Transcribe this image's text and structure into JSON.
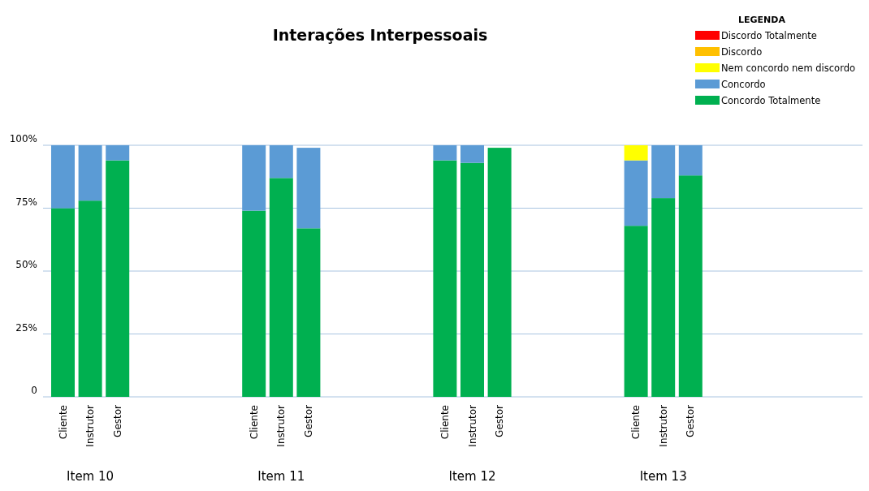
{
  "chart_data": {
    "type": "bar",
    "title": "Interações Interpessoais",
    "stacked": true,
    "categories": [
      "Cliente",
      "Instrutor",
      "Gestor",
      null,
      null,
      null,
      null,
      "Cliente",
      "Instrutor",
      "Gestor",
      null,
      null,
      null,
      null,
      "Cliente",
      "Instrutor",
      "Gestor",
      null,
      null,
      null,
      null,
      "Cliente",
      "Instrutor",
      "Gestor"
    ],
    "series": [
      {
        "name": "Concordo Totalmente",
        "color": "#00b050",
        "values": [
          75,
          78,
          94,
          null,
          null,
          null,
          null,
          74,
          87,
          67,
          null,
          null,
          null,
          null,
          94,
          93,
          99,
          null,
          null,
          null,
          null,
          68,
          79,
          88
        ]
      },
      {
        "name": "Concordo",
        "color": "#5b9bd5",
        "values": [
          25,
          22,
          6,
          null,
          null,
          null,
          null,
          26,
          13,
          32,
          null,
          null,
          null,
          null,
          6,
          7,
          0,
          null,
          null,
          null,
          null,
          26,
          21,
          12
        ]
      },
      {
        "name": "Nem concordo nem discordo",
        "color": "#ffff00",
        "values": [
          0,
          0,
          0,
          null,
          null,
          null,
          null,
          0,
          0,
          0,
          null,
          null,
          null,
          null,
          0,
          0,
          0,
          null,
          null,
          null,
          null,
          6,
          0,
          0
        ]
      },
      {
        "name": "Discordo",
        "color": "#ffc000",
        "values": [
          0,
          0,
          0,
          null,
          null,
          null,
          null,
          0,
          0,
          0,
          null,
          null,
          null,
          null,
          0,
          0,
          0,
          null,
          null,
          null,
          null,
          0,
          0,
          0
        ]
      },
      {
        "name": "Discordo Totalmente",
        "color": "#ff0000",
        "values": [
          0,
          0,
          0,
          null,
          null,
          null,
          null,
          0,
          0,
          0,
          null,
          null,
          null,
          null,
          0,
          0,
          0,
          null,
          null,
          null,
          null,
          0,
          0,
          0
        ]
      }
    ],
    "ylim": [
      0,
      100
    ],
    "yticks": [
      {
        "value": 0,
        "label": "0"
      },
      {
        "value": 25,
        "label": "25%"
      },
      {
        "value": 50,
        "label": "50%"
      },
      {
        "value": 75,
        "label": "75%"
      },
      {
        "value": 100,
        "label": "100%"
      }
    ],
    "grid": "y",
    "legend": "top right",
    "legend_title": "LEGENDA",
    "annotations": [
      "Item 10",
      "Item 11",
      "Item 12",
      "Item 13"
    ]
  }
}
